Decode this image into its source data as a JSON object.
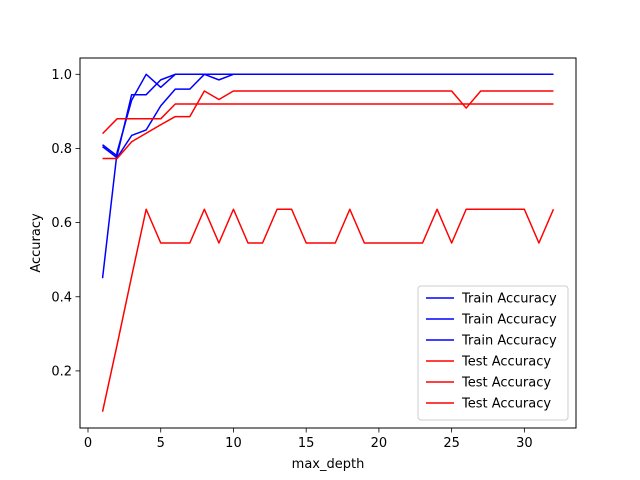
{
  "chart_data": {
    "type": "line",
    "title": "",
    "xlabel": "max_depth",
    "ylabel": "Accuracy",
    "xlim": [
      -0.55,
      33.55
    ],
    "ylim": [
      0.046,
      1.044
    ],
    "xticks": [
      0,
      5,
      10,
      15,
      20,
      25,
      30
    ],
    "yticks": [
      0.2,
      0.4,
      0.6,
      0.8,
      1.0
    ],
    "ytick_labels": [
      "0.2",
      "0.4",
      "0.6",
      "0.8",
      "1.0"
    ],
    "grid": false,
    "legend_position": "lower-right",
    "x": [
      1,
      2,
      3,
      4,
      5,
      6,
      7,
      8,
      9,
      10,
      11,
      12,
      13,
      14,
      15,
      16,
      17,
      18,
      19,
      20,
      21,
      22,
      23,
      24,
      25,
      26,
      27,
      28,
      29,
      30,
      31,
      32
    ],
    "series": [
      {
        "name": "Train Accuracy",
        "color": "#0000ff",
        "values": [
          0.45,
          0.79,
          0.93,
          1.0,
          0.965,
          1.0,
          1.0,
          1.0,
          1.0,
          1.0,
          1.0,
          1.0,
          1.0,
          1.0,
          1.0,
          1.0,
          1.0,
          1.0,
          1.0,
          1.0,
          1.0,
          1.0,
          1.0,
          1.0,
          1.0,
          1.0,
          1.0,
          1.0,
          1.0,
          1.0,
          1.0,
          1.0
        ]
      },
      {
        "name": "Train Accuracy",
        "color": "#0000ff",
        "values": [
          0.81,
          0.78,
          0.945,
          0.945,
          0.985,
          1.0,
          1.0,
          1.0,
          0.985,
          1.0,
          1.0,
          1.0,
          1.0,
          1.0,
          1.0,
          1.0,
          1.0,
          1.0,
          1.0,
          1.0,
          1.0,
          1.0,
          1.0,
          1.0,
          1.0,
          1.0,
          1.0,
          1.0,
          1.0,
          1.0,
          1.0,
          1.0
        ]
      },
      {
        "name": "Train Accuracy",
        "color": "#0000ff",
        "values": [
          0.805,
          0.775,
          0.835,
          0.85,
          0.915,
          0.96,
          0.96,
          1.0,
          1.0,
          1.0,
          1.0,
          1.0,
          1.0,
          1.0,
          1.0,
          1.0,
          1.0,
          1.0,
          1.0,
          1.0,
          1.0,
          1.0,
          1.0,
          1.0,
          1.0,
          1.0,
          1.0,
          1.0,
          1.0,
          1.0,
          1.0,
          1.0
        ]
      },
      {
        "name": "Test Accuracy",
        "color": "#ff0000",
        "values": [
          0.09,
          0.27,
          0.455,
          0.636,
          0.545,
          0.545,
          0.545,
          0.636,
          0.545,
          0.636,
          0.545,
          0.545,
          0.636,
          0.636,
          0.545,
          0.545,
          0.545,
          0.636,
          0.545,
          0.545,
          0.545,
          0.545,
          0.545,
          0.636,
          0.545,
          0.636,
          0.636,
          0.636,
          0.636,
          0.636,
          0.545,
          0.636
        ]
      },
      {
        "name": "Test Accuracy",
        "color": "#ff0000",
        "values": [
          0.773,
          0.773,
          0.818,
          0.841,
          0.864,
          0.886,
          0.886,
          0.955,
          0.932,
          0.955,
          0.955,
          0.955,
          0.955,
          0.955,
          0.955,
          0.955,
          0.955,
          0.955,
          0.955,
          0.955,
          0.955,
          0.955,
          0.955,
          0.955,
          0.955,
          0.909,
          0.955,
          0.955,
          0.955,
          0.955,
          0.955,
          0.955
        ]
      },
      {
        "name": "Test Accuracy",
        "color": "#ff0000",
        "values": [
          0.84,
          0.88,
          0.88,
          0.88,
          0.88,
          0.92,
          0.92,
          0.92,
          0.92,
          0.92,
          0.92,
          0.92,
          0.92,
          0.92,
          0.92,
          0.92,
          0.92,
          0.92,
          0.92,
          0.92,
          0.92,
          0.92,
          0.92,
          0.92,
          0.92,
          0.92,
          0.92,
          0.92,
          0.92,
          0.92,
          0.92,
          0.92
        ]
      }
    ]
  }
}
